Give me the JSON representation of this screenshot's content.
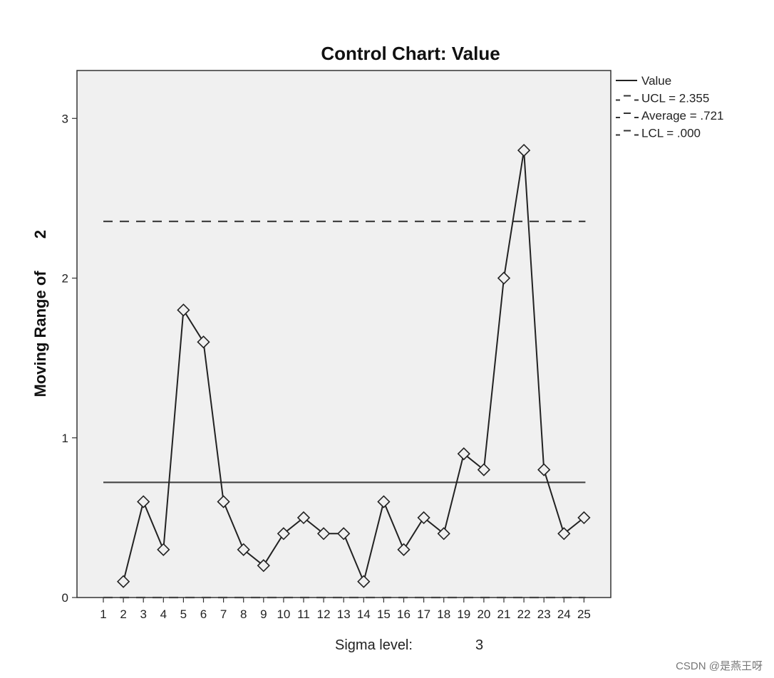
{
  "chart_data": {
    "type": "line",
    "title": "Control Chart: Value",
    "ylabel": "Moving Range of",
    "ylabel_suffix": "2",
    "xlabel": "",
    "categories": [
      "1",
      "2",
      "3",
      "4",
      "5",
      "6",
      "7",
      "8",
      "9",
      "10",
      "11",
      "12",
      "13",
      "14",
      "15",
      "16",
      "17",
      "18",
      "19",
      "20",
      "21",
      "22",
      "23",
      "24",
      "25"
    ],
    "series": [
      {
        "name": "Value",
        "values": [
          null,
          0.1,
          0.6,
          0.3,
          1.8,
          1.6,
          0.6,
          0.3,
          0.2,
          0.4,
          0.5,
          0.4,
          0.4,
          0.1,
          0.6,
          0.3,
          0.5,
          0.4,
          0.9,
          0.8,
          2.0,
          2.8,
          0.8,
          0.4,
          0.5
        ]
      }
    ],
    "reference_lines": [
      {
        "label": "UCL = 2.355",
        "value": 2.355,
        "style": "dashed"
      },
      {
        "label": "Average = .721",
        "value": 0.721,
        "style": "solid"
      },
      {
        "label": "LCL = .000",
        "value": 0.0,
        "style": "dashed"
      }
    ],
    "legend": [
      "Value",
      "UCL = 2.355",
      "Average = .721",
      "LCL = .000"
    ],
    "legend_position": "top-right-outside",
    "y_ticks": [
      "0",
      "1",
      "2",
      "3"
    ],
    "ylim": [
      0,
      3.3
    ],
    "grid": false,
    "marker": "diamond",
    "plot_background": "#f0f0f0",
    "line_color": "#222222",
    "footer": {
      "label": "Sigma level:",
      "value": "3"
    }
  },
  "watermark": "CSDN @是燕王呀"
}
